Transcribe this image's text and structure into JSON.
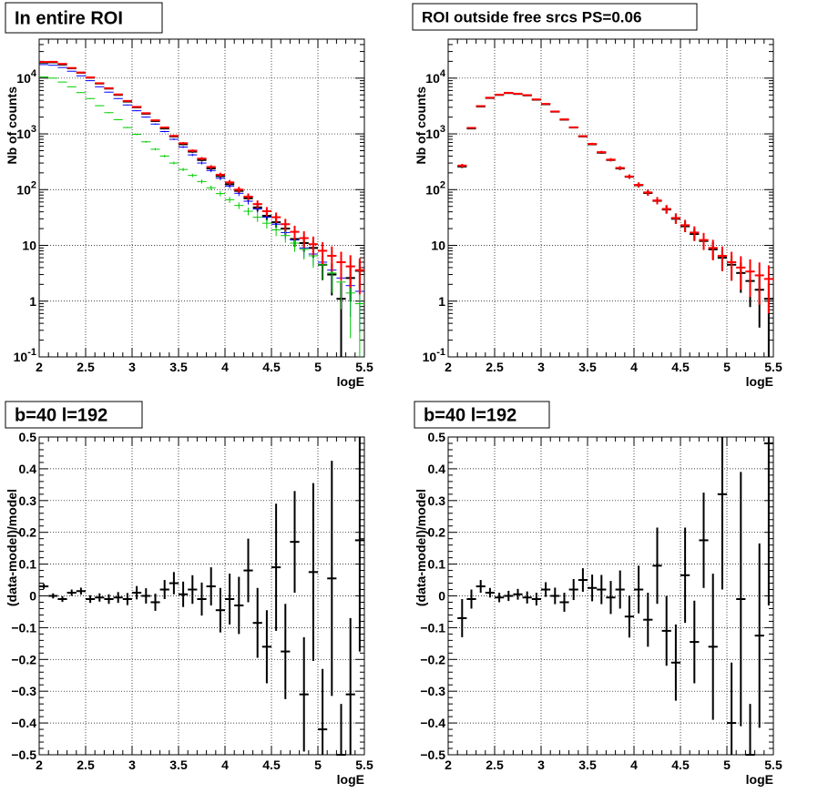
{
  "chart_data": [
    {
      "type": "scatter",
      "title": "In entire ROI",
      "xlabel": "logE",
      "ylabel": "Nb of counts",
      "xlim": [
        2,
        5.5
      ],
      "ylim": [
        0.1,
        50000
      ],
      "yscale": "log",
      "grid": true,
      "x_ticks": [
        "2",
        "2.5",
        "3",
        "3.5",
        "4",
        "4.5",
        "5",
        "5.5"
      ],
      "y_ticks": [
        "10^-1",
        "1",
        "10",
        "10^2",
        "10^3",
        "10^4"
      ],
      "bin_half_width": 0.05,
      "series": [
        {
          "color": "#000000",
          "x": [
            2.05,
            2.15,
            2.25,
            2.35,
            2.45,
            2.55,
            2.65,
            2.75,
            2.85,
            2.95,
            3.05,
            3.15,
            3.25,
            3.35,
            3.45,
            3.55,
            3.65,
            3.75,
            3.85,
            3.95,
            4.05,
            4.15,
            4.25,
            4.35,
            4.45,
            4.55,
            4.65,
            4.75,
            4.85,
            4.95,
            5.05,
            5.15,
            5.25,
            5.35,
            5.45
          ],
          "y": [
            19000,
            19200,
            17500,
            15000,
            12500,
            10200,
            8000,
            6500,
            5000,
            3800,
            3000,
            2300,
            1700,
            1250,
            900,
            650,
            480,
            340,
            240,
            175,
            125,
            95,
            70,
            48,
            34,
            26,
            20,
            13,
            11,
            9,
            4.5,
            3,
            1.1,
            2.6,
            3.5
          ]
        },
        {
          "color": "#0000ff",
          "x": [
            2.05,
            2.15,
            2.25,
            2.35,
            2.45,
            2.55,
            2.65,
            2.75,
            2.85,
            2.95,
            3.05,
            3.15,
            3.25,
            3.35,
            3.45,
            3.55,
            3.65,
            3.75,
            3.85,
            3.95,
            4.05,
            4.15,
            4.25,
            4.35,
            4.45,
            4.55,
            4.65,
            4.75,
            4.85,
            4.95,
            5.05,
            5.15,
            5.25,
            5.35,
            5.45
          ],
          "y": [
            17500,
            17000,
            15500,
            13300,
            11000,
            9000,
            7000,
            5600,
            4300,
            3300,
            2600,
            2000,
            1500,
            1100,
            800,
            580,
            420,
            300,
            220,
            160,
            116,
            86,
            62,
            45,
            32,
            24,
            17,
            12.5,
            9,
            7,
            5,
            3.6,
            2.6,
            1.9,
            1.5
          ]
        },
        {
          "color": "#00cc00",
          "x": [
            2.05,
            2.15,
            2.25,
            2.35,
            2.45,
            2.55,
            2.65,
            2.75,
            2.85,
            2.95,
            3.05,
            3.15,
            3.25,
            3.35,
            3.45,
            3.55,
            3.65,
            3.75,
            3.85,
            3.95,
            4.05,
            4.15,
            4.25,
            4.35,
            4.45,
            4.55,
            4.65,
            4.75,
            4.85,
            4.95,
            5.05,
            5.15,
            5.25,
            5.35,
            5.45
          ],
          "y": [
            10500,
            10000,
            8500,
            7000,
            5500,
            4300,
            3200,
            2400,
            1800,
            1300,
            980,
            720,
            530,
            400,
            300,
            230,
            180,
            140,
            108,
            85,
            66,
            52,
            41,
            32,
            25,
            19,
            15,
            11,
            8.5,
            6.5,
            4.5,
            3.2,
            2.2,
            1.4,
            0.9
          ]
        },
        {
          "color": "#ff0000",
          "x": [
            2.05,
            2.15,
            2.25,
            2.35,
            2.45,
            2.55,
            2.65,
            2.75,
            2.85,
            2.95,
            3.05,
            3.15,
            3.25,
            3.35,
            3.45,
            3.55,
            3.65,
            3.75,
            3.85,
            3.95,
            4.05,
            4.15,
            4.25,
            4.35,
            4.45,
            4.55,
            4.65,
            4.75,
            4.85,
            4.95,
            5.05,
            5.15,
            5.25,
            5.35,
            5.45
          ],
          "y": [
            19500,
            19600,
            18000,
            15200,
            12600,
            10300,
            8100,
            6600,
            5100,
            3900,
            3050,
            2350,
            1750,
            1300,
            920,
            680,
            500,
            360,
            255,
            185,
            135,
            100,
            75,
            55,
            41,
            32,
            24,
            17.5,
            13.5,
            10.5,
            8,
            6.5,
            5,
            4.2,
            3.6
          ]
        }
      ]
    },
    {
      "type": "scatter",
      "title": "ROI outside free srcs PS=0.06",
      "xlabel": "logE",
      "ylabel": "Nb of counts",
      "xlim": [
        2,
        5.5
      ],
      "ylim": [
        0.1,
        50000
      ],
      "yscale": "log",
      "grid": true,
      "x_ticks": [
        "2",
        "2.5",
        "3",
        "3.5",
        "4",
        "4.5",
        "5",
        "5.5"
      ],
      "y_ticks": [
        "10^-1",
        "1",
        "10",
        "10^2",
        "10^3",
        "10^4"
      ],
      "bin_half_width": 0.05,
      "series": [
        {
          "color": "#000000",
          "x": [
            2.15,
            2.25,
            2.35,
            2.45,
            2.55,
            2.65,
            2.75,
            2.85,
            2.95,
            3.05,
            3.15,
            3.25,
            3.35,
            3.45,
            3.55,
            3.65,
            3.75,
            3.85,
            3.95,
            4.05,
            4.15,
            4.25,
            4.35,
            4.45,
            4.55,
            4.65,
            4.75,
            4.85,
            4.95,
            5.05,
            5.15,
            5.25,
            5.35,
            5.45
          ],
          "y": [
            260,
            1250,
            3100,
            4400,
            5000,
            5400,
            5200,
            4900,
            4100,
            3400,
            2500,
            1800,
            1300,
            900,
            650,
            460,
            340,
            240,
            170,
            120,
            87,
            63,
            44,
            30,
            22,
            16,
            12,
            8.5,
            6,
            4.5,
            3.2,
            2.3,
            1.6,
            1.1
          ]
        },
        {
          "color": "#ff0000",
          "x": [
            2.15,
            2.25,
            2.35,
            2.45,
            2.55,
            2.65,
            2.75,
            2.85,
            2.95,
            3.05,
            3.15,
            3.25,
            3.35,
            3.45,
            3.55,
            3.65,
            3.75,
            3.85,
            3.95,
            4.05,
            4.15,
            4.25,
            4.35,
            4.45,
            4.55,
            4.65,
            4.75,
            4.85,
            4.95,
            5.05,
            5.15,
            5.25,
            5.35,
            5.45
          ],
          "y": [
            270,
            1280,
            3150,
            4450,
            5050,
            5450,
            5250,
            4950,
            4150,
            3450,
            2520,
            1820,
            1310,
            910,
            660,
            470,
            345,
            245,
            172,
            122,
            89,
            64,
            45,
            31,
            23,
            17,
            12.5,
            9,
            6.5,
            5,
            4,
            3.4,
            2.9,
            2.5
          ]
        }
      ]
    },
    {
      "type": "scatter",
      "title": "b=40 l=192",
      "xlabel": "logE",
      "ylabel": "(data-model)/model",
      "xlim": [
        2,
        5.5
      ],
      "ylim": [
        -0.5,
        0.5
      ],
      "grid": true,
      "x_ticks": [
        "2",
        "2.5",
        "3",
        "3.5",
        "4",
        "4.5",
        "5",
        "5.5"
      ],
      "y_ticks": [
        "−0.5",
        "−0.4",
        "−0.3",
        "−0.2",
        "−0.1",
        "0",
        "0.1",
        "0.2",
        "0.3",
        "0.4",
        "0.5"
      ],
      "bin_half_width": 0.05,
      "series": [
        {
          "color": "#000000",
          "x": [
            2.05,
            2.15,
            2.25,
            2.35,
            2.45,
            2.55,
            2.65,
            2.75,
            2.85,
            2.95,
            3.05,
            3.15,
            3.25,
            3.35,
            3.45,
            3.55,
            3.65,
            3.75,
            3.85,
            3.95,
            4.05,
            4.15,
            4.25,
            4.35,
            4.45,
            4.55,
            4.65,
            4.75,
            4.85,
            4.95,
            5.05,
            5.15,
            5.25,
            5.35,
            5.45
          ],
          "y": [
            0.03,
            0.0,
            -0.01,
            0.01,
            0.015,
            -0.01,
            -0.005,
            -0.01,
            -0.005,
            -0.01,
            0.01,
            0.0,
            -0.02,
            0.02,
            0.04,
            0.005,
            0.02,
            -0.01,
            0.03,
            -0.045,
            -0.01,
            -0.03,
            0.08,
            -0.085,
            -0.16,
            0.09,
            -0.175,
            0.17,
            -0.31,
            0.075,
            -0.42,
            0.055,
            -0.5,
            -0.31,
            0.175
          ],
          "err": [
            0.008,
            0.008,
            0.009,
            0.01,
            0.011,
            0.012,
            0.013,
            0.015,
            0.017,
            0.019,
            0.021,
            0.024,
            0.027,
            0.03,
            0.035,
            0.04,
            0.045,
            0.052,
            0.06,
            0.07,
            0.08,
            0.09,
            0.1,
            0.11,
            0.115,
            0.2,
            0.15,
            0.16,
            0.18,
            0.28,
            0.19,
            0.37,
            0.16,
            0.24,
            0.35
          ]
        }
      ]
    },
    {
      "type": "scatter",
      "title": "b=40 l=192",
      "xlabel": "logE",
      "ylabel": "(data-model)/model",
      "xlim": [
        2,
        5.5
      ],
      "ylim": [
        -0.5,
        0.5
      ],
      "grid": true,
      "x_ticks": [
        "2",
        "2.5",
        "3",
        "3.5",
        "4",
        "4.5",
        "5",
        "5.5"
      ],
      "y_ticks": [
        "−0.5",
        "−0.4",
        "−0.3",
        "−0.2",
        "−0.1",
        "0",
        "0.1",
        "0.2",
        "0.3",
        "0.4",
        "0.5"
      ],
      "bin_half_width": 0.05,
      "series": [
        {
          "color": "#000000",
          "x": [
            2.15,
            2.25,
            2.35,
            2.45,
            2.55,
            2.65,
            2.75,
            2.85,
            2.95,
            3.05,
            3.15,
            3.25,
            3.35,
            3.45,
            3.55,
            3.65,
            3.75,
            3.85,
            3.95,
            4.05,
            4.15,
            4.25,
            4.35,
            4.45,
            4.55,
            4.65,
            4.75,
            4.85,
            4.95,
            5.05,
            5.15,
            5.25,
            5.35,
            5.45
          ],
          "y": [
            -0.07,
            -0.01,
            0.03,
            0.01,
            -0.005,
            0.0,
            0.005,
            -0.005,
            -0.01,
            0.02,
            0.0,
            -0.02,
            0.02,
            0.05,
            0.025,
            0.02,
            -0.005,
            0.02,
            -0.065,
            0.02,
            -0.075,
            0.095,
            -0.11,
            -0.21,
            0.065,
            -0.145,
            0.175,
            -0.16,
            0.32,
            -0.4,
            -0.01,
            -0.5,
            -0.125,
            0.48
          ],
          "err": [
            0.06,
            0.03,
            0.02,
            0.015,
            0.015,
            0.016,
            0.017,
            0.019,
            0.02,
            0.023,
            0.026,
            0.03,
            0.033,
            0.037,
            0.042,
            0.046,
            0.052,
            0.06,
            0.066,
            0.075,
            0.085,
            0.12,
            0.11,
            0.12,
            0.15,
            0.13,
            0.15,
            0.23,
            0.3,
            0.19,
            0.4,
            0.16,
            0.29,
            0.51
          ]
        }
      ]
    }
  ]
}
